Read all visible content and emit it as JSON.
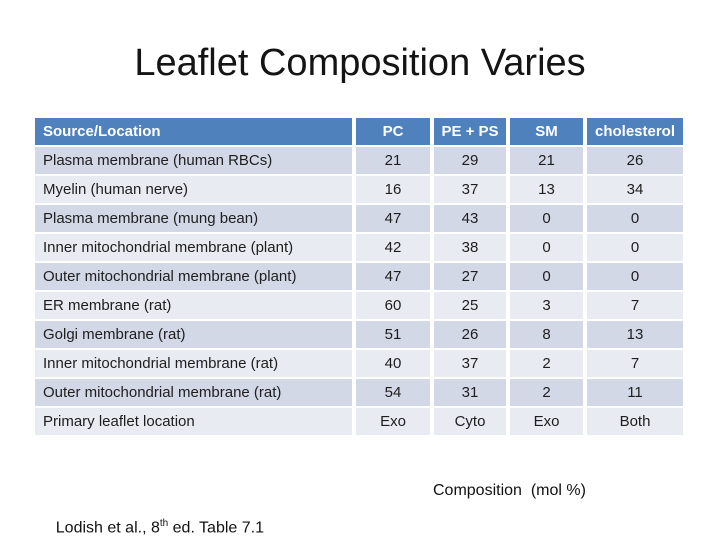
{
  "slide": {
    "title": "Leaflet Composition Varies",
    "caption": "Composition  (mol %)",
    "citation": {
      "prefix": "Lodish et al., 8",
      "superscript": "th",
      "suffix": " ed. Table 7.1"
    }
  },
  "table": {
    "columns": [
      "Source/Location",
      "PC",
      "PE + PS",
      "SM",
      "cholesterol"
    ],
    "rows": [
      {
        "label": "Plasma membrane (human RBCs)",
        "values": [
          "21",
          "29",
          "21",
          "26"
        ]
      },
      {
        "label": "Myelin (human nerve)",
        "values": [
          "16",
          "37",
          "13",
          "34"
        ]
      },
      {
        "label": "Plasma membrane (mung bean)",
        "values": [
          "47",
          "43",
          "0",
          "0"
        ]
      },
      {
        "label": "Inner mitochondrial membrane (plant)",
        "values": [
          "42",
          "38",
          "0",
          "0"
        ]
      },
      {
        "label": "Outer mitochondrial membrane (plant)",
        "values": [
          "47",
          "27",
          "0",
          "0"
        ]
      },
      {
        "label": "ER membrane (rat)",
        "values": [
          "60",
          "25",
          "3",
          "7"
        ]
      },
      {
        "label": "Golgi membrane (rat)",
        "values": [
          "51",
          "26",
          "8",
          "13"
        ]
      },
      {
        "label": "Inner mitochondrial membrane (rat)",
        "values": [
          "40",
          "37",
          "2",
          "7"
        ]
      },
      {
        "label": "Outer mitochondrial membrane (rat)",
        "values": [
          "54",
          "31",
          "2",
          "11"
        ]
      },
      {
        "label": "Primary leaflet location",
        "values": [
          "Exo",
          "Cyto",
          "Exo",
          "Both"
        ]
      }
    ]
  },
  "colors": {
    "header_bg": "#4f81bd",
    "header_text": "#ffffff",
    "row_band_dark": "#d2d8e6",
    "row_band_light": "#e9ebf3",
    "body_text": "#1e1e1e"
  }
}
